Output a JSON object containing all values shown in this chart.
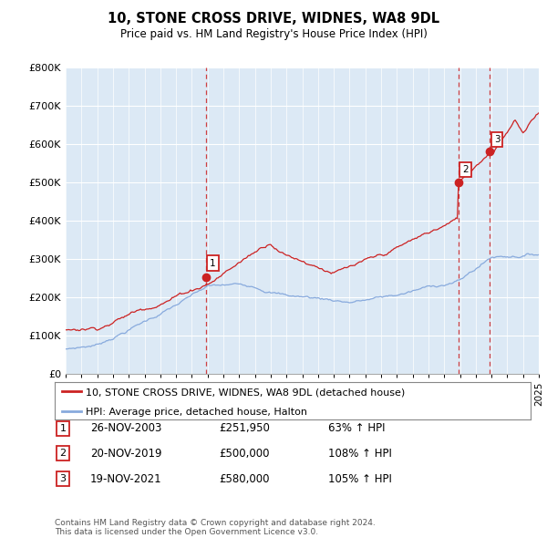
{
  "title": "10, STONE CROSS DRIVE, WIDNES, WA8 9DL",
  "subtitle": "Price paid vs. HM Land Registry's House Price Index (HPI)",
  "ylim": [
    0,
    800000
  ],
  "yticks": [
    0,
    100000,
    200000,
    300000,
    400000,
    500000,
    600000,
    700000,
    800000
  ],
  "ytick_labels": [
    "£0",
    "£100K",
    "£200K",
    "£300K",
    "£400K",
    "£500K",
    "£600K",
    "£700K",
    "£800K"
  ],
  "background_color": "#ffffff",
  "plot_bg_color": "#dce9f5",
  "sale_color": "#cc2222",
  "hpi_color": "#88aadd",
  "vline_color": "#cc2222",
  "sale_dates": [
    2003.9,
    2019.9,
    2021.9
  ],
  "sale_prices": [
    251950,
    500000,
    580000
  ],
  "sale_labels": [
    "1",
    "2",
    "3"
  ],
  "legend_sale": "10, STONE CROSS DRIVE, WIDNES, WA8 9DL (detached house)",
  "legend_hpi": "HPI: Average price, detached house, Halton",
  "table_entries": [
    {
      "label": "1",
      "date": "26-NOV-2003",
      "price": "£251,950",
      "change": "63% ↑ HPI"
    },
    {
      "label": "2",
      "date": "20-NOV-2019",
      "price": "£500,000",
      "change": "108% ↑ HPI"
    },
    {
      "label": "3",
      "date": "19-NOV-2021",
      "price": "£580,000",
      "change": "105% ↑ HPI"
    }
  ],
  "footnote": "Contains HM Land Registry data © Crown copyright and database right 2024.\nThis data is licensed under the Open Government Licence v3.0.",
  "xmin": 1995,
  "xmax": 2025
}
